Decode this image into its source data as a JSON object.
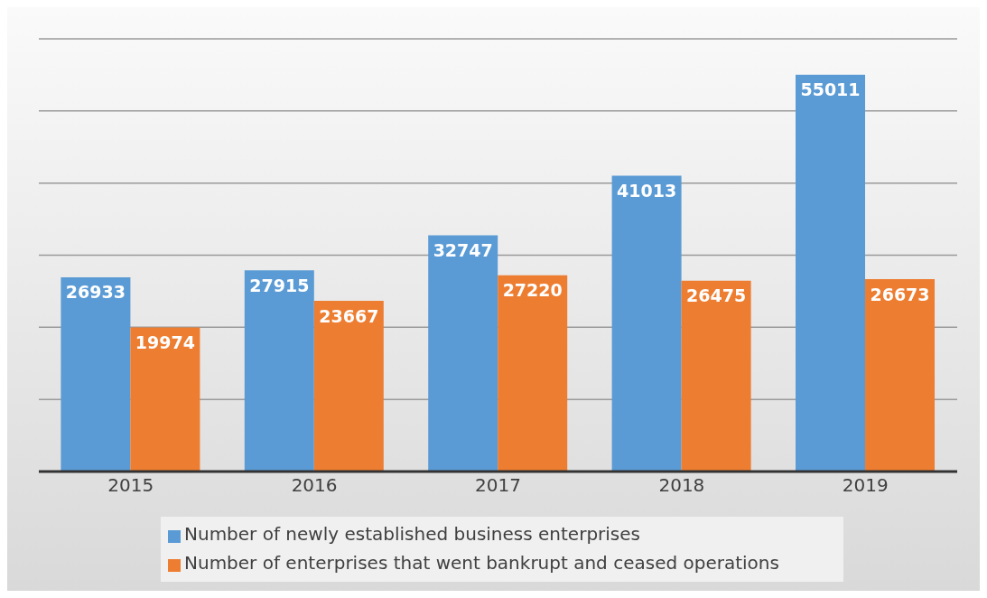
{
  "chart_data": {
    "type": "bar",
    "categories": [
      "2015",
      "2016",
      "2017",
      "2018",
      "2019"
    ],
    "series": [
      {
        "name": "Number of newly established business enterprises",
        "color": "#5b9bd5",
        "values": [
          26933,
          27915,
          32747,
          41013,
          55011
        ]
      },
      {
        "name": "Number of enterprises that went bankrupt and ceased operations",
        "color": "#ed7d31",
        "values": [
          19974,
          23667,
          27220,
          26475,
          26673
        ]
      }
    ],
    "ylim": [
      0,
      60000
    ],
    "yticks": [
      {
        "value": 0,
        "label": null
      },
      {
        "value": 10000,
        "label": null
      },
      {
        "value": 20000,
        "label": null
      },
      {
        "value": 30000,
        "label": null
      },
      {
        "value": 40000,
        "label": null
      },
      {
        "value": 50000,
        "label": null
      },
      {
        "value": 60000,
        "label": null
      }
    ],
    "tick_labels": "x",
    "grid": "y",
    "data_labels": true,
    "legend": "bottom"
  }
}
